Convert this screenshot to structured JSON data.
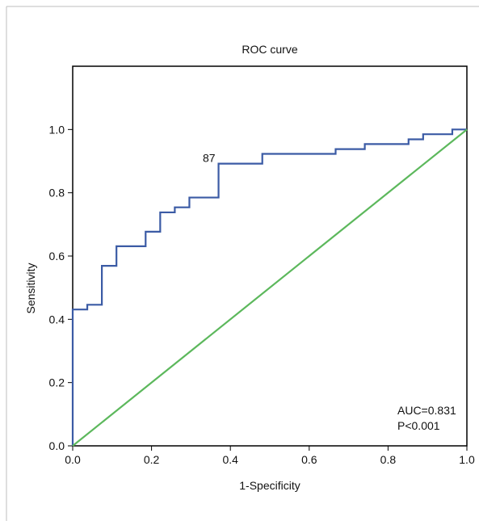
{
  "chart_data": {
    "type": "line",
    "title": "ROC curve",
    "xlabel": "1-Specificity",
    "ylabel": "Sensitivity",
    "xlim": [
      0,
      1
    ],
    "ylim": [
      0,
      1.2
    ],
    "x_ticks": [
      "0.0",
      "0.2",
      "0.4",
      "0.6",
      "0.8",
      "1.0"
    ],
    "y_ticks": [
      "0.0",
      "0.2",
      "0.4",
      "0.6",
      "0.8",
      "1.0"
    ],
    "grid": false,
    "series": [
      {
        "color": "#3b5ba5",
        "step": true,
        "x": [
          0,
          0,
          0.037,
          0.074,
          0.111,
          0.185,
          0.222,
          0.259,
          0.296,
          0.37,
          0.481,
          0.667,
          0.741,
          0.852,
          0.889,
          0.963,
          1.0
        ],
        "y": [
          0,
          0.431,
          0.446,
          0.569,
          0.631,
          0.677,
          0.738,
          0.754,
          0.785,
          0.892,
          0.923,
          0.938,
          0.954,
          0.969,
          0.985,
          1.0,
          1.0
        ]
      },
      {
        "color": "#5cb85c",
        "x": [
          0,
          1
        ],
        "y": [
          0,
          1
        ]
      }
    ],
    "point_label": {
      "text": "87",
      "x": 0.37,
      "y": 0.892
    },
    "annotations": [
      "AUC=0.831",
      "P<0.001"
    ]
  }
}
